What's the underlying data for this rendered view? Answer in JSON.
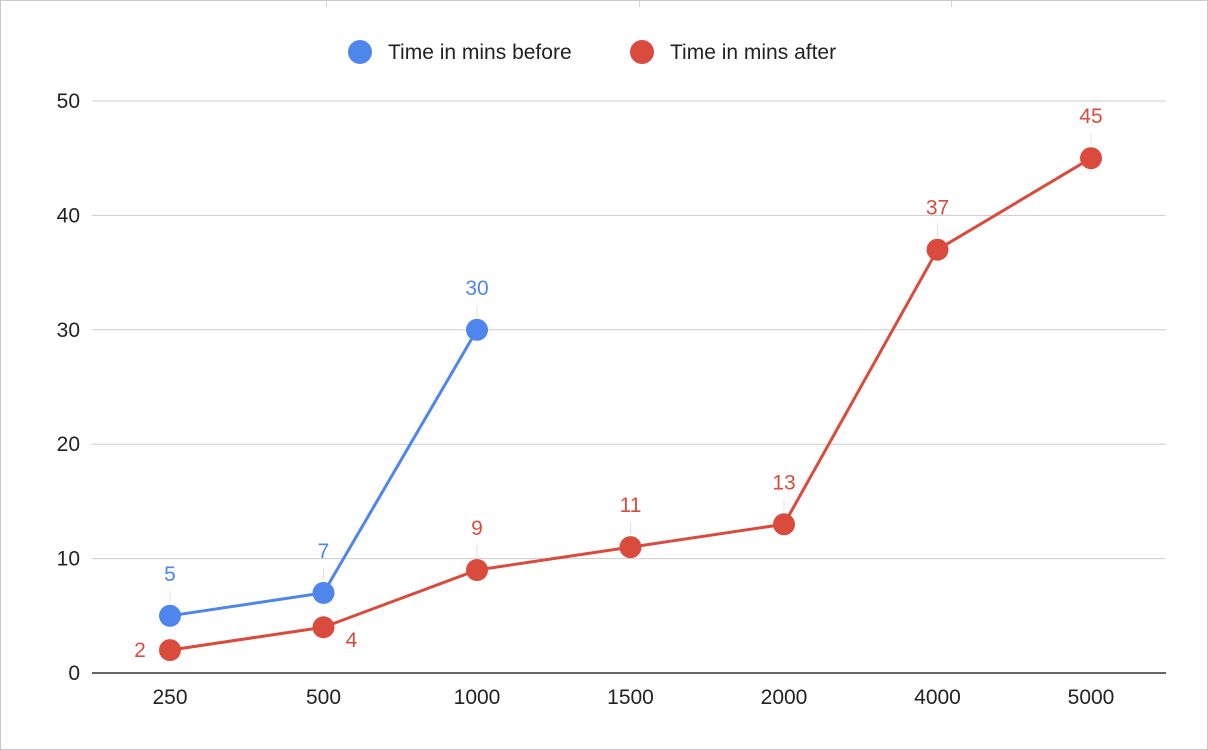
{
  "chart_data": {
    "type": "line",
    "title": "",
    "xlabel": "",
    "ylabel": "",
    "categories": [
      "250",
      "500",
      "1000",
      "1500",
      "2000",
      "4000",
      "5000"
    ],
    "ylim": [
      0,
      50
    ],
    "yticks": [
      0,
      10,
      20,
      30,
      40,
      50
    ],
    "grid": true,
    "legend_position": "top",
    "series": [
      {
        "name": "Time in mins before",
        "color": "#4f86ec",
        "values": [
          5,
          7,
          30,
          null,
          null,
          null,
          null
        ]
      },
      {
        "name": "Time in mins after",
        "color": "#d94b3d",
        "values": [
          2,
          4,
          9,
          11,
          13,
          37,
          45
        ]
      }
    ]
  }
}
